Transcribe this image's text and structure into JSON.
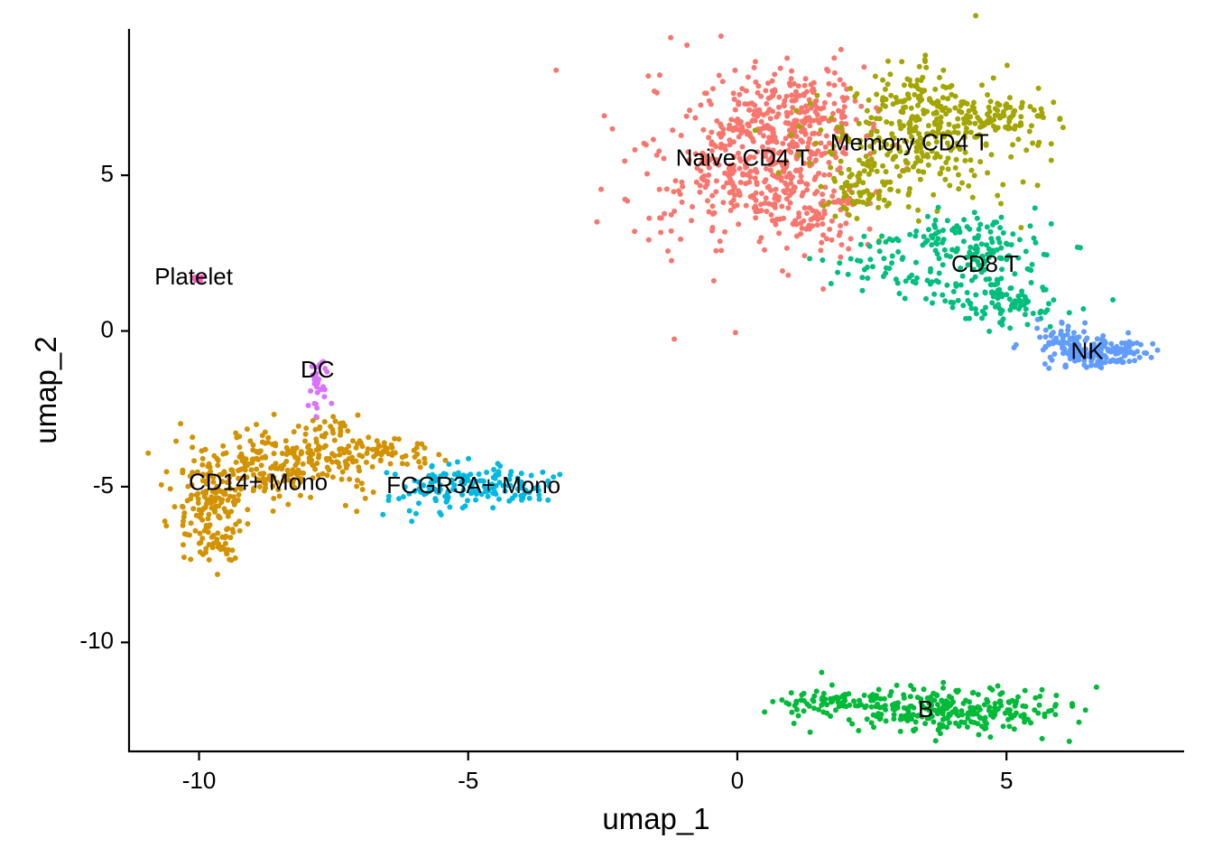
{
  "chart_data": {
    "type": "scatter",
    "title": "",
    "xlabel": "umap_1",
    "ylabel": "umap_2",
    "xlim": [
      -11.3,
      8.3
    ],
    "ylim": [
      -13.5,
      9.7
    ],
    "xticks": [
      -10,
      -5,
      0,
      5
    ],
    "yticks": [
      -10,
      -5,
      0,
      5
    ],
    "xtick_labels": [
      "-10",
      "-5",
      "0",
      "5"
    ],
    "ytick_labels": [
      "-10",
      "-5",
      "0",
      "5"
    ],
    "grid": false,
    "legend": "none",
    "clusters": [
      {
        "name": "Naive CD4 T",
        "color": "#F8766D",
        "label_pos": [
          0.1,
          5.5
        ],
        "n_points": 700,
        "blobs": [
          {
            "cx": 0.3,
            "cy": 5.4,
            "sx": 0.95,
            "sy": 1.35,
            "w": 1.0
          },
          {
            "cx": 1.1,
            "cy": 6.8,
            "sx": 0.6,
            "sy": 0.8,
            "w": 0.45
          },
          {
            "cx": 1.5,
            "cy": 3.6,
            "sx": 0.4,
            "sy": 0.5,
            "w": 0.15
          }
        ]
      },
      {
        "name": "Memory CD4 T",
        "color": "#A3A500",
        "label_pos": [
          3.2,
          6.0
        ],
        "n_points": 480,
        "blobs": [
          {
            "cx": 3.3,
            "cy": 6.2,
            "sx": 0.95,
            "sy": 1.0,
            "w": 1.0
          },
          {
            "cx": 4.6,
            "cy": 6.9,
            "sx": 0.7,
            "sy": 0.45,
            "w": 0.4
          },
          {
            "cx": 2.4,
            "cy": 4.5,
            "sx": 0.4,
            "sy": 0.5,
            "w": 0.2
          },
          {
            "cx": 3.3,
            "cy": 7.8,
            "sx": 0.35,
            "sy": 0.4,
            "w": 0.15
          }
        ]
      },
      {
        "name": "CD8 T",
        "color": "#00BF7D",
        "label_pos": [
          4.6,
          2.1
        ],
        "n_points": 300,
        "blobs": [
          {
            "cx": 4.4,
            "cy": 2.7,
            "sx": 0.75,
            "sy": 0.5,
            "w": 1.0
          },
          {
            "cx": 5.1,
            "cy": 0.9,
            "sx": 0.5,
            "sy": 0.45,
            "w": 0.8
          },
          {
            "cx": 2.7,
            "cy": 2.4,
            "sx": 0.6,
            "sy": 0.4,
            "w": 0.35
          },
          {
            "cx": 3.8,
            "cy": 1.4,
            "sx": 0.6,
            "sy": 0.3,
            "w": 0.3
          }
        ]
      },
      {
        "name": "NK",
        "color": "#619CFF",
        "label_pos": [
          6.5,
          -0.7
        ],
        "n_points": 200,
        "blobs": [
          {
            "cx": 6.5,
            "cy": -0.7,
            "sx": 0.5,
            "sy": 0.25,
            "w": 1.0
          },
          {
            "cx": 7.0,
            "cy": -0.6,
            "sx": 0.25,
            "sy": 0.2,
            "w": 0.4
          },
          {
            "cx": 6.0,
            "cy": -0.1,
            "sx": 0.25,
            "sy": 0.25,
            "w": 0.3
          }
        ]
      },
      {
        "name": "B",
        "color": "#00BA38",
        "label_pos": [
          3.5,
          -12.2
        ],
        "n_points": 340,
        "blobs": [
          {
            "cx": 3.3,
            "cy": -12.1,
            "sx": 1.2,
            "sy": 0.35,
            "w": 1.0
          },
          {
            "cx": 4.5,
            "cy": -12.2,
            "sx": 0.6,
            "sy": 0.35,
            "w": 0.5
          },
          {
            "cx": 1.8,
            "cy": -11.9,
            "sx": 0.45,
            "sy": 0.15,
            "w": 0.25
          }
        ]
      },
      {
        "name": "CD14+ Mono",
        "color": "#D39200",
        "label_pos": [
          -8.9,
          -4.9
        ],
        "n_points": 480,
        "blobs": [
          {
            "cx": -8.6,
            "cy": -4.4,
            "sx": 0.85,
            "sy": 0.6,
            "w": 1.0
          },
          {
            "cx": -9.8,
            "cy": -5.8,
            "sx": 0.35,
            "sy": 0.75,
            "w": 0.55
          },
          {
            "cx": -6.9,
            "cy": -3.9,
            "sx": 0.6,
            "sy": 0.3,
            "w": 0.4
          },
          {
            "cx": -9.6,
            "cy": -7.0,
            "sx": 0.2,
            "sy": 0.2,
            "w": 0.1
          },
          {
            "cx": -7.6,
            "cy": -3.1,
            "sx": 0.25,
            "sy": 0.3,
            "w": 0.1
          }
        ]
      },
      {
        "name": "FCGR3A+ Mono",
        "color": "#00B9E3",
        "label_pos": [
          -4.9,
          -5.0
        ],
        "n_points": 160,
        "blobs": [
          {
            "cx": -4.8,
            "cy": -4.9,
            "sx": 0.65,
            "sy": 0.3,
            "w": 1.0
          },
          {
            "cx": -5.6,
            "cy": -5.2,
            "sx": 0.4,
            "sy": 0.3,
            "w": 0.4
          },
          {
            "cx": -4.1,
            "cy": -5.2,
            "sx": 0.3,
            "sy": 0.2,
            "w": 0.3
          }
        ]
      },
      {
        "name": "DC",
        "color": "#DB72FB",
        "label_pos": [
          -7.8,
          -1.3
        ],
        "n_points": 32,
        "blobs": [
          {
            "cx": -7.8,
            "cy": -1.6,
            "sx": 0.1,
            "sy": 0.35,
            "w": 1.0
          }
        ]
      },
      {
        "name": "Platelet",
        "color": "#FF61C3",
        "label_pos": [
          -10.1,
          1.7
        ],
        "n_points": 10,
        "blobs": [
          {
            "cx": -10.0,
            "cy": 1.7,
            "sx": 0.08,
            "sy": 0.05,
            "w": 1.0
          }
        ]
      }
    ]
  }
}
